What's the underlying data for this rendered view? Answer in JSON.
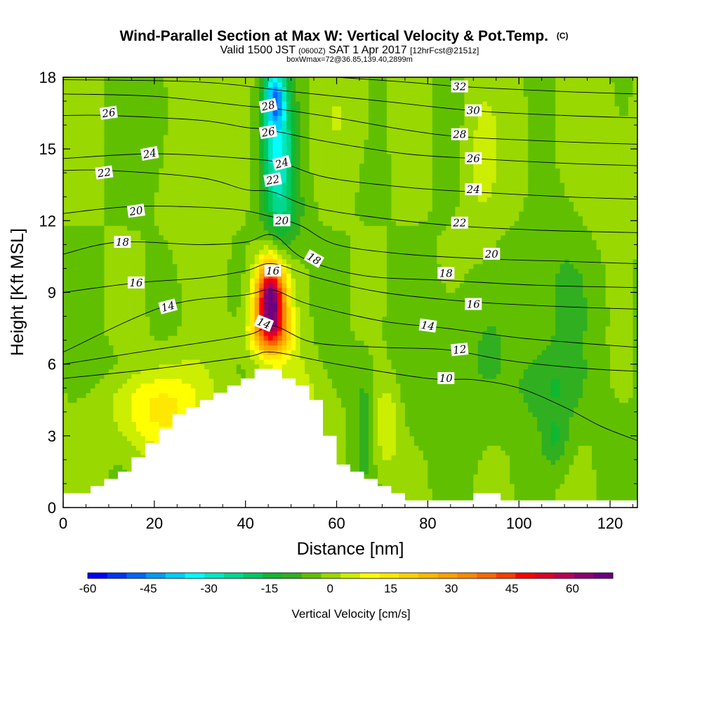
{
  "header": {
    "title": "Wind-Parallel Section at Max W: Vertical Velocity & Pot.Temp.",
    "title_mark": "(C)",
    "subtitle_a": "Valid 1500 JST",
    "subtitle_b": "(0600Z)",
    "subtitle_c": "SAT 1 Apr 2017",
    "subtitle_d": "[12hrFcst@2151z]",
    "box_note": "boxWmax=72@36.85,139.40,2899m"
  },
  "chart_data": {
    "type": "heatmap",
    "xlabel": "Distance [nm]",
    "ylabel": "Height [Kft MSL]",
    "xlim": [
      0,
      126
    ],
    "ylim": [
      0,
      18
    ],
    "x_ticks": [
      0,
      20,
      40,
      60,
      80,
      100,
      120
    ],
    "y_ticks": [
      0,
      3,
      6,
      9,
      12,
      15,
      18
    ],
    "colorbar": {
      "title": "Vertical Velocity [cm/s]",
      "range": [
        -60,
        70
      ],
      "step": 5,
      "tick_values": [
        -60,
        -45,
        -30,
        -15,
        0,
        15,
        30,
        45,
        60
      ],
      "colors": [
        "#0000ff",
        "#0033ff",
        "#0066ff",
        "#0099ff",
        "#00ccff",
        "#00ffff",
        "#00e8c0",
        "#00d890",
        "#00c860",
        "#10b830",
        "#30b020",
        "#60c000",
        "#99d800",
        "#ccee00",
        "#ffff00",
        "#ffe800",
        "#ffd000",
        "#ffb800",
        "#ffa000",
        "#ff8800",
        "#ff6600",
        "#ff3c00",
        "#ff0000",
        "#dd0028",
        "#b80055",
        "#8c006e",
        "#6a0080"
      ]
    },
    "velocity_features": [
      {
        "kind": "updraft",
        "x": 45.5,
        "y": 8.8,
        "peak": 72,
        "sx": 3.2,
        "sy": 1.5
      },
      {
        "kind": "updraft",
        "x": 45.5,
        "y": 7.3,
        "peak": 32,
        "sx": 4.5,
        "sy": 1.0
      },
      {
        "kind": "updraft",
        "x": 22,
        "y": 4.2,
        "peak": 17,
        "sx": 10,
        "sy": 2.0
      },
      {
        "kind": "updraft",
        "x": 50,
        "y": 4.0,
        "peak": 13,
        "sx": 6,
        "sy": 2.0
      },
      {
        "kind": "updraft",
        "x": 71,
        "y": 3.5,
        "peak": 10,
        "sx": 3,
        "sy": 2.0
      },
      {
        "kind": "updraft",
        "x": 29,
        "y": 14.5,
        "peak": 6,
        "sx": 5,
        "sy": 4.0
      },
      {
        "kind": "updraft",
        "x": 92,
        "y": 14.5,
        "peak": 6,
        "sx": 4,
        "sy": 3.5
      },
      {
        "kind": "updraft",
        "x": 62,
        "y": 16.5,
        "peak": 4,
        "sx": 6,
        "sy": 2.5
      },
      {
        "kind": "updraft",
        "x": 118,
        "y": 14,
        "peak": 5,
        "sx": 6,
        "sy": 3.5
      },
      {
        "kind": "updraft",
        "x": 100,
        "y": 15,
        "peak": 4,
        "sx": 3,
        "sy": 2.5
      },
      {
        "kind": "downdraft",
        "x": 47,
        "y": 15.0,
        "peak": -30,
        "sx": 3.5,
        "sy": 3.0
      },
      {
        "kind": "downdraft",
        "x": 46.5,
        "y": 17.2,
        "peak": -30,
        "sx": 2.2,
        "sy": 1.2
      },
      {
        "kind": "downdraft",
        "x": 49,
        "y": 12.3,
        "peak": -8,
        "sx": 4,
        "sy": 1.5
      },
      {
        "kind": "downdraft",
        "x": 107,
        "y": 5.0,
        "peak": -8,
        "sx": 7,
        "sy": 1.5
      },
      {
        "kind": "downdraft",
        "x": 108,
        "y": 2.8,
        "peak": -9,
        "sx": 3,
        "sy": 1.2
      },
      {
        "kind": "downdraft",
        "x": 66,
        "y": 3.5,
        "peak": -8,
        "sx": 2,
        "sy": 2.5
      },
      {
        "kind": "downdraft",
        "x": 86,
        "y": 6.0,
        "peak": -5,
        "sx": 14,
        "sy": 3.0
      },
      {
        "kind": "downdraft",
        "x": 110,
        "y": 9.0,
        "peak": -5,
        "sx": 10,
        "sy": 4.0
      },
      {
        "kind": "downdraft",
        "x": 20,
        "y": 16,
        "peak": -4,
        "sx": 5,
        "sy": 2.5
      },
      {
        "kind": "downdraft",
        "x": 14,
        "y": 6.0,
        "peak": -4,
        "sx": 8,
        "sy": 1.0
      }
    ],
    "terrain": [
      [
        0,
        0.6
      ],
      [
        6,
        0.6
      ],
      [
        6,
        0.9
      ],
      [
        9,
        0.9
      ],
      [
        9,
        1.2
      ],
      [
        12,
        1.2
      ],
      [
        12,
        1.5
      ],
      [
        15,
        1.5
      ],
      [
        15,
        2.1
      ],
      [
        18,
        2.1
      ],
      [
        18,
        2.7
      ],
      [
        21,
        2.7
      ],
      [
        21,
        3.3
      ],
      [
        24,
        3.3
      ],
      [
        24,
        3.9
      ],
      [
        27,
        3.9
      ],
      [
        27,
        4.2
      ],
      [
        30,
        4.2
      ],
      [
        30,
        4.5
      ],
      [
        33,
        4.5
      ],
      [
        33,
        4.8
      ],
      [
        36,
        4.8
      ],
      [
        36,
        5.1
      ],
      [
        39,
        5.1
      ],
      [
        39,
        5.4
      ],
      [
        42,
        5.4
      ],
      [
        42,
        5.8
      ],
      [
        48,
        5.8
      ],
      [
        48,
        5.4
      ],
      [
        51,
        5.4
      ],
      [
        51,
        5.1
      ],
      [
        54,
        5.1
      ],
      [
        54,
        4.5
      ],
      [
        57,
        4.5
      ],
      [
        57,
        3.0
      ],
      [
        60,
        3.0
      ],
      [
        60,
        1.8
      ],
      [
        63,
        1.8
      ],
      [
        63,
        1.5
      ],
      [
        66,
        1.5
      ],
      [
        66,
        1.2
      ],
      [
        69,
        1.2
      ],
      [
        69,
        0.9
      ],
      [
        72,
        0.9
      ],
      [
        72,
        0.6
      ],
      [
        75,
        0.6
      ],
      [
        75,
        0.3
      ],
      [
        90,
        0.3
      ],
      [
        90,
        0.6
      ],
      [
        96,
        0.6
      ],
      [
        96,
        0.3
      ],
      [
        126,
        0.3
      ]
    ],
    "isentropes": [
      {
        "value": 10,
        "points": [
          [
            0,
            5.4
          ],
          [
            20,
            5.8
          ],
          [
            40,
            6.3
          ],
          [
            46,
            6.5
          ],
          [
            60,
            6.0
          ],
          [
            80,
            5.4
          ],
          [
            90,
            5.35
          ],
          [
            100,
            5.0
          ],
          [
            110,
            4.2
          ],
          [
            118,
            3.4
          ],
          [
            126,
            2.8
          ]
        ]
      },
      {
        "value": 12,
        "points": [
          [
            0,
            6.0
          ],
          [
            20,
            6.6
          ],
          [
            40,
            7.2
          ],
          [
            46,
            7.6
          ],
          [
            55,
            6.9
          ],
          [
            70,
            6.7
          ],
          [
            84,
            6.6
          ],
          [
            96,
            6.2
          ],
          [
            104,
            6.0
          ],
          [
            116,
            5.8
          ],
          [
            126,
            5.7
          ]
        ]
      },
      {
        "value": 14,
        "points": [
          [
            0,
            6.5
          ],
          [
            22,
            8.4
          ],
          [
            40,
            8.9
          ],
          [
            46,
            9.1
          ],
          [
            54,
            8.5
          ],
          [
            70,
            7.8
          ],
          [
            84,
            7.5
          ],
          [
            100,
            7.1
          ],
          [
            112,
            6.9
          ],
          [
            126,
            6.7
          ]
        ]
      },
      {
        "value": 16,
        "points": [
          [
            0,
            9.0
          ],
          [
            16,
            9.4
          ],
          [
            30,
            9.6
          ],
          [
            40,
            9.9
          ],
          [
            46,
            10.2
          ],
          [
            56,
            9.6
          ],
          [
            70,
            9.0
          ],
          [
            90,
            8.6
          ],
          [
            110,
            8.4
          ],
          [
            126,
            8.3
          ]
        ]
      },
      {
        "value": 18,
        "points": [
          [
            0,
            10.6
          ],
          [
            12,
            11.1
          ],
          [
            30,
            11.0
          ],
          [
            40,
            11.1
          ],
          [
            46,
            11.4
          ],
          [
            53,
            10.4
          ],
          [
            66,
            9.7
          ],
          [
            84,
            9.5
          ],
          [
            104,
            9.3
          ],
          [
            126,
            9.2
          ]
        ]
      },
      {
        "value": 20,
        "points": [
          [
            0,
            12.3
          ],
          [
            16,
            12.6
          ],
          [
            36,
            12.5
          ],
          [
            45,
            12.2
          ],
          [
            52,
            11.8
          ],
          [
            60,
            11.0
          ],
          [
            75,
            10.6
          ],
          [
            93,
            10.4
          ],
          [
            110,
            10.3
          ],
          [
            126,
            10.2
          ]
        ]
      },
      {
        "value": 22,
        "points": [
          [
            0,
            14.1
          ],
          [
            10,
            14.1
          ],
          [
            30,
            13.8
          ],
          [
            40,
            13.3
          ],
          [
            46,
            13.2
          ],
          [
            54,
            12.6
          ],
          [
            66,
            12.2
          ],
          [
            85,
            11.8
          ],
          [
            105,
            11.6
          ],
          [
            126,
            11.5
          ]
        ]
      },
      {
        "value": 24,
        "points": [
          [
            0,
            14.6
          ],
          [
            20,
            14.8
          ],
          [
            40,
            14.6
          ],
          [
            48,
            14.4
          ],
          [
            58,
            13.8
          ],
          [
            75,
            13.4
          ],
          [
            90,
            13.2
          ],
          [
            110,
            13.0
          ],
          [
            126,
            12.9
          ]
        ]
      },
      {
        "value": 26,
        "points": [
          [
            0,
            16.4
          ],
          [
            10,
            16.4
          ],
          [
            30,
            16.2
          ],
          [
            40,
            15.9
          ],
          [
            45,
            15.8
          ],
          [
            58,
            15.3
          ],
          [
            75,
            14.8
          ],
          [
            90,
            14.6
          ],
          [
            110,
            14.4
          ],
          [
            126,
            14.3
          ]
        ]
      },
      {
        "value": 28,
        "points": [
          [
            0,
            17.3
          ],
          [
            20,
            17.2
          ],
          [
            40,
            16.8
          ],
          [
            46,
            16.7
          ],
          [
            60,
            16.3
          ],
          [
            75,
            15.8
          ],
          [
            88,
            15.5
          ],
          [
            110,
            15.3
          ],
          [
            126,
            15.2
          ]
        ]
      },
      {
        "value": 30,
        "points": [
          [
            0,
            17.9
          ],
          [
            30,
            17.8
          ],
          [
            50,
            17.4
          ],
          [
            70,
            17.0
          ],
          [
            90,
            16.6
          ],
          [
            110,
            16.4
          ],
          [
            126,
            16.3
          ]
        ]
      },
      {
        "value": 32,
        "points": [
          [
            60,
            18.0
          ],
          [
            75,
            17.8
          ],
          [
            88,
            17.6
          ],
          [
            110,
            17.4
          ],
          [
            126,
            17.3
          ]
        ]
      }
    ],
    "contour_labels": [
      {
        "text": "10",
        "x": 84,
        "y": 5.4,
        "angle": 0
      },
      {
        "text": "12",
        "x": 87,
        "y": 6.6,
        "angle": -6
      },
      {
        "text": "14",
        "x": 23,
        "y": 8.4,
        "angle": -15
      },
      {
        "text": "14",
        "x": 44,
        "y": 7.7,
        "angle": 22
      },
      {
        "text": "14",
        "x": 80,
        "y": 7.6,
        "angle": 8
      },
      {
        "text": "16",
        "x": 16,
        "y": 9.4,
        "angle": 0
      },
      {
        "text": "16",
        "x": 46,
        "y": 9.9,
        "angle": 0
      },
      {
        "text": "16",
        "x": 90,
        "y": 8.5,
        "angle": 0
      },
      {
        "text": "18",
        "x": 13,
        "y": 11.1,
        "angle": 0
      },
      {
        "text": "18",
        "x": 55,
        "y": 10.4,
        "angle": 30
      },
      {
        "text": "18",
        "x": 84,
        "y": 9.8,
        "angle": 0
      },
      {
        "text": "20",
        "x": 16,
        "y": 12.4,
        "angle": -8
      },
      {
        "text": "20",
        "x": 48,
        "y": 12.0,
        "angle": 0
      },
      {
        "text": "20",
        "x": 94,
        "y": 10.6,
        "angle": 0
      },
      {
        "text": "22",
        "x": 9,
        "y": 14.0,
        "angle": -8
      },
      {
        "text": "22",
        "x": 46,
        "y": 13.7,
        "angle": -10
      },
      {
        "text": "22",
        "x": 87,
        "y": 11.9,
        "angle": 0
      },
      {
        "text": "24",
        "x": 19,
        "y": 14.8,
        "angle": -10
      },
      {
        "text": "24",
        "x": 48,
        "y": 14.4,
        "angle": -15
      },
      {
        "text": "24",
        "x": 90,
        "y": 13.3,
        "angle": 0
      },
      {
        "text": "26",
        "x": 10,
        "y": 16.5,
        "angle": -8
      },
      {
        "text": "26",
        "x": 45,
        "y": 15.7,
        "angle": -10
      },
      {
        "text": "26",
        "x": 90,
        "y": 14.6,
        "angle": 0
      },
      {
        "text": "28",
        "x": 45,
        "y": 16.8,
        "angle": -12
      },
      {
        "text": "28",
        "x": 87,
        "y": 15.6,
        "angle": 0
      },
      {
        "text": "30",
        "x": 90,
        "y": 16.6,
        "angle": 0
      },
      {
        "text": "32",
        "x": 87,
        "y": 17.6,
        "angle": 0
      }
    ]
  }
}
